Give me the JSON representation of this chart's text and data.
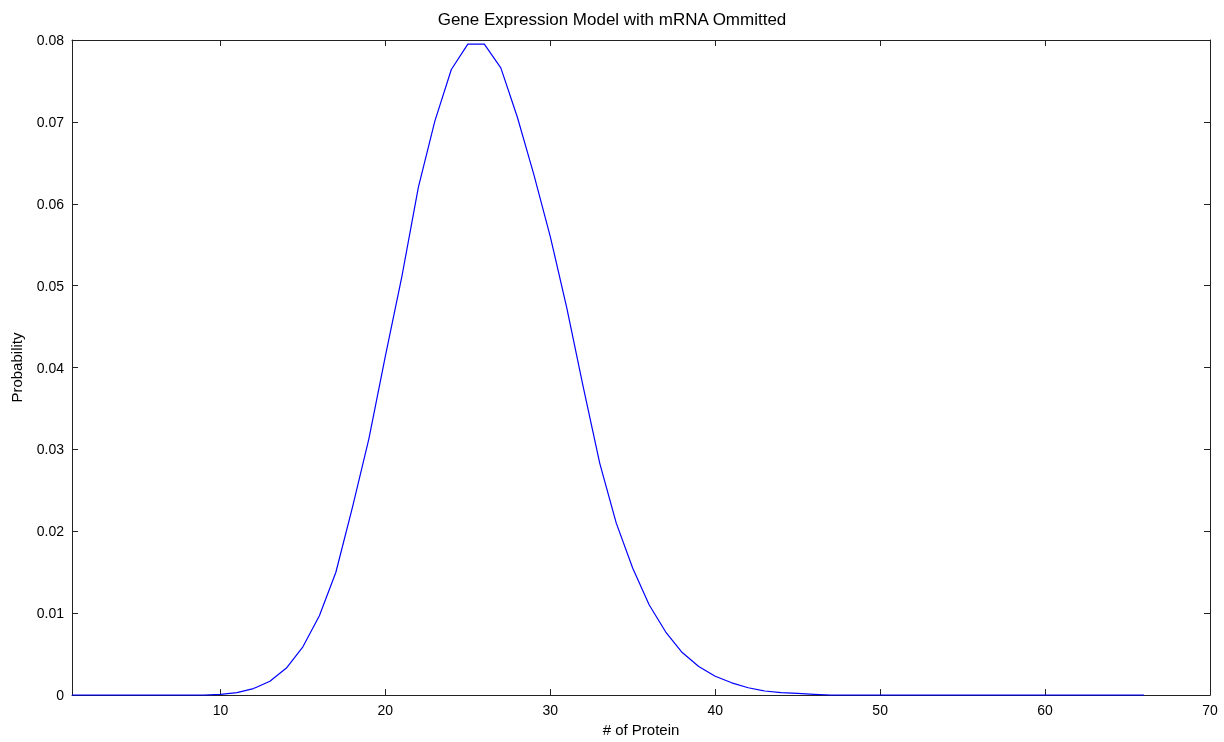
{
  "chart_data": {
    "type": "line",
    "title": "Gene Expression Model with mRNA Ommitted",
    "xlabel": "# of Protein",
    "ylabel": "Probability",
    "x": [
      1,
      2,
      3,
      4,
      5,
      6,
      7,
      8,
      9,
      10,
      11,
      12,
      13,
      14,
      15,
      16,
      17,
      18,
      19,
      20,
      21,
      22,
      23,
      24,
      25,
      26,
      27,
      28,
      29,
      30,
      31,
      32,
      33,
      34,
      35,
      36,
      37,
      38,
      39,
      40,
      41,
      42,
      43,
      44,
      45,
      46,
      47,
      48,
      50,
      55,
      60,
      66
    ],
    "series": [
      {
        "color": "#0000ff",
        "values": [
          0,
          0,
          0,
          0,
          0,
          0,
          0,
          0,
          0,
          0.0001,
          0.0003,
          0.0008,
          0.0017,
          0.0033,
          0.0059,
          0.0097,
          0.015,
          0.0229,
          0.0313,
          0.0414,
          0.0511,
          0.062,
          0.0701,
          0.0764,
          0.0795,
          0.0795,
          0.0766,
          0.0706,
          0.0636,
          0.056,
          0.0473,
          0.0376,
          0.0283,
          0.021,
          0.0155,
          0.011,
          0.0077,
          0.0052,
          0.0035,
          0.0023,
          0.0015,
          0.0009,
          0.0005,
          0.0003,
          0.0002,
          0.0001,
          0,
          0,
          0,
          0,
          0,
          0
        ]
      }
    ],
    "xlim": [
      1,
      70
    ],
    "xticks": [
      10,
      20,
      30,
      40,
      50,
      60,
      70
    ],
    "ylim": [
      0,
      0.08
    ],
    "yticks": [
      0,
      0.01,
      0.02,
      0.03,
      0.04,
      0.05,
      0.06,
      0.07,
      0.08
    ],
    "grid": false,
    "marker": "none",
    "line_style": "solid"
  }
}
